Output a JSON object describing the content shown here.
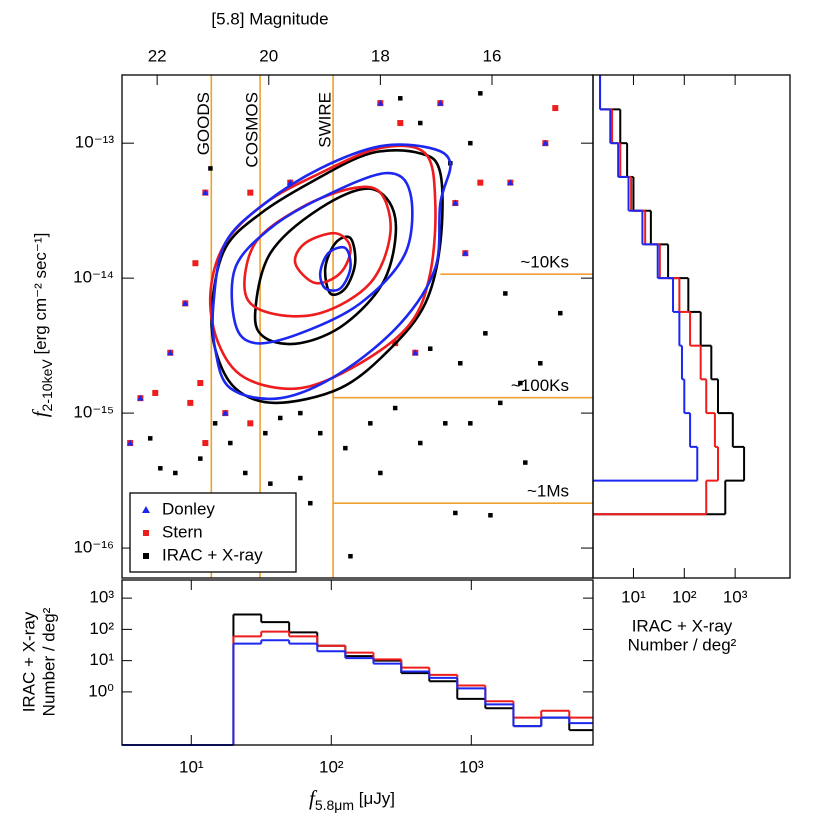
{
  "chart_data": [
    {
      "type": "scatter",
      "x2label": "[5.8] Magnitude",
      "ylabel": {
        "symbol": "f",
        "subscript": "2-10keV",
        "unit": " [erg cm⁻² sec⁻¹]"
      },
      "log_x": true,
      "log_y": true,
      "xlim": [
        3.2,
        7400
      ],
      "ylim": [
        6e-17,
        3.2e-13
      ],
      "yticks": [
        {
          "value": 1e-13,
          "label": "10⁻¹³"
        },
        {
          "value": 1e-14,
          "label": "10⁻¹⁴"
        },
        {
          "value": 1e-15,
          "label": "10⁻¹⁵"
        },
        {
          "value": 1e-16,
          "label": "10⁻¹⁶"
        }
      ],
      "x2lim": [
        22.63,
        14.19
      ],
      "x2ticks": [
        22,
        20,
        18,
        16
      ],
      "legend": "lower left",
      "reference_color": "#f0a030",
      "reference_lines": [
        {
          "label": "GOODS",
          "x": 13.9
        },
        {
          "label": "COSMOS",
          "x": 31
        },
        {
          "label": "SWIRE",
          "x": 103
        },
        {
          "label": "~10Ks",
          "y": 1.07e-14,
          "x_from": 601
        },
        {
          "label": "~100Ks",
          "y": 1.3e-15,
          "x_from": 103
        },
        {
          "label": "~1Ms",
          "y": 2.15e-16,
          "x_from": 103
        }
      ],
      "series": [
        {
          "name": "Donley",
          "color": "#1c28f0",
          "marker": "triangle",
          "x": [
            4.33,
            7.08,
            9.06,
            17.5,
            12.6,
            50.9,
            224,
            601,
            769,
            906,
            1900,
            3380,
            398,
            3.66
          ],
          "values": [
            1.29e-15,
            2.8e-15,
            6.5e-15,
            1e-15,
            4.3e-14,
            5.1e-14,
            1.98e-13,
            1.98e-13,
            3.6e-14,
            1.53e-14,
            5.1e-14,
            1e-13,
            2.8e-15,
            6e-16
          ]
        },
        {
          "name": "Stern",
          "color": "#ee1c1c",
          "marker": "square",
          "x": [
            3.66,
            4.33,
            5.53,
            7.08,
            9.06,
            9.84,
            11.6,
            12.6,
            17.5,
            26.4,
            10.7,
            12.6,
            26.4,
            50.9,
            224,
            311,
            601,
            769,
            906,
            1160,
            1900,
            3380,
            3980,
            398,
            286
          ],
          "values": [
            6e-16,
            1.29e-15,
            1.41e-15,
            2.8e-15,
            6.5e-15,
            1.19e-15,
            1.67e-15,
            6e-16,
            1e-15,
            8.4e-16,
            1.29e-14,
            4.3e-14,
            4.3e-14,
            5.1e-14,
            1.98e-13,
            1.41e-13,
            1.98e-13,
            3.6e-14,
            1.53e-14,
            5.1e-14,
            5.1e-14,
            1e-13,
            1.82e-13,
            2.8e-15,
            3.3e-15
          ]
        },
        {
          "name": "IRAC + X-ray",
          "color": "#000000",
          "marker": "square",
          "x": [
            5.09,
            6.01,
            7.69,
            11.6,
            14.8,
            19.0,
            24.3,
            33.8,
            43.2,
            60.1,
            83.4,
            126,
            190,
            286,
            432,
            652,
            984,
            1610,
            2240,
            3110,
            4320,
            1260,
            834,
            1750,
            509,
            137,
            70.8,
            36.7,
            769,
            1370,
            13.7,
            432,
            708,
            984,
            1160,
            311,
            2430,
            224,
            60.1,
            22.4
          ],
          "values": [
            6.5e-16,
            3.9e-16,
            3.6e-16,
            4.6e-16,
            8.4e-16,
            6e-16,
            3.6e-16,
            7.1e-16,
            9.2e-16,
            1e-15,
            7.1e-16,
            5.5e-16,
            8.4e-16,
            1.09e-15,
            6e-16,
            8.4e-16,
            8.4e-16,
            1.19e-15,
            1.67e-15,
            2.34e-15,
            5.5e-15,
            3.9e-15,
            2.34e-15,
            7.7e-15,
            3e-15,
            8.7e-17,
            2.15e-16,
            3e-16,
            1.82e-16,
            1.75e-16,
            6.5e-14,
            1.41e-13,
            7.1e-14,
            1e-13,
            2.34e-13,
            2.15e-13,
            4.3e-16,
            3.6e-16,
            3.3e-16,
            2.15e-16
          ]
        }
      ],
      "contours": [
        {
          "color": "#000000",
          "x": [
            14.1,
            17.5,
            31.1,
            70.8,
            190,
            432,
            601,
            601,
            469,
            264,
            116,
            39.8,
            20.6,
            14.8
          ],
          "y": [
            6.5e-15,
            1.67e-14,
            3e-14,
            5.1e-14,
            8.4e-14,
            8.4e-14,
            6e-14,
            1.82e-14,
            6.5e-15,
            3e-15,
            1.53e-15,
            1.19e-15,
            1.53e-15,
            3e-15
          ]
        },
        {
          "color": "#ee1c1c",
          "x": [
            13.7,
            17.5,
            33.8,
            83.4,
            224,
            469,
            553,
            509,
            366,
            161,
            60.1,
            24.3,
            15.6
          ],
          "y": [
            7.7e-15,
            1.82e-14,
            3.6e-14,
            6e-14,
            9.2e-14,
            8.4e-14,
            3.6e-14,
            1.09e-14,
            4.6e-15,
            2.34e-15,
            1.53e-15,
            1.82e-15,
            3.3e-15
          ]
        },
        {
          "color": "#1c28f0",
          "x": [
            14.4,
            17.5,
            33.8,
            83.4,
            224,
            509,
            708,
            601,
            553,
            311,
            116,
            43.2,
            19.0,
            14.8
          ],
          "y": [
            6.5e-15,
            1.82e-14,
            3.6e-14,
            6.5e-14,
            9.5e-14,
            9.2e-14,
            7.1e-14,
            3.6e-14,
            1.19e-14,
            4.6e-15,
            1.98e-15,
            1.29e-15,
            1.53e-15,
            3e-15
          ]
        },
        {
          "color": "#000000",
          "x": [
            28.6,
            36.7,
            83.4,
            190,
            286,
            243,
            126,
            60.1,
            33.8
          ],
          "y": [
            5.5e-15,
            1.53e-14,
            3.3e-14,
            4.6e-14,
            2.8e-14,
            1e-14,
            4.6e-15,
            3.3e-15,
            3.6e-15
          ]
        },
        {
          "color": "#ee1c1c",
          "x": [
            24.3,
            28.6,
            60.1,
            137,
            224,
            264,
            190,
            83.4,
            36.7
          ],
          "y": [
            7.7e-15,
            1.82e-14,
            3.3e-14,
            4.6e-14,
            4.3e-14,
            2.15e-14,
            9.2e-15,
            5.5e-15,
            5.5e-15
          ]
        },
        {
          "color": "#1c28f0",
          "x": [
            20.6,
            20.6,
            36.7,
            83.4,
            243,
            366,
            338,
            161,
            60.1,
            28.6
          ],
          "y": [
            4.6e-15,
            1.19e-14,
            2.34e-14,
            3.9e-14,
            6e-14,
            4.3e-14,
            1.53e-14,
            6.5e-15,
            3.9e-15,
            3.3e-15
          ]
        },
        {
          "color": "#000000",
          "x": [
            90.6,
            107,
            137,
            148,
            126,
            98.4
          ],
          "y": [
            1.19e-14,
            1.82e-14,
            1.98e-14,
            1.29e-14,
            8.4e-15,
            7.7e-15
          ]
        },
        {
          "color": "#ee1c1c",
          "x": [
            55.3,
            65.2,
            107,
            137,
            116,
            76.9
          ],
          "y": [
            1.29e-14,
            1.82e-14,
            2.15e-14,
            1.67e-14,
            1.09e-14,
            9.2e-15
          ]
        },
        {
          "color": "#1c28f0",
          "x": [
            83.4,
            95.2,
            126,
            137,
            116,
            90.6
          ],
          "y": [
            1.09e-14,
            1.53e-14,
            1.67e-14,
            1.19e-14,
            8.4e-15,
            8.4e-15
          ]
        }
      ]
    },
    {
      "type": "histogram",
      "orientation": "vertical",
      "xlabel": {
        "symbol": "f",
        "subscript": "5.8μm",
        "unit": " [μJy]"
      },
      "ylabel": [
        "IRAC + X-ray",
        "Number / deg²"
      ],
      "log_x": true,
      "log_y": true,
      "xlim": [
        3.2,
        7400
      ],
      "ylim": [
        0.02,
        3800
      ],
      "xticks": [
        {
          "value": 10,
          "label": "10¹"
        },
        {
          "value": 100,
          "label": "10²"
        },
        {
          "value": 1000,
          "label": "10³"
        }
      ],
      "yticks": [
        {
          "value": 1,
          "label": "10⁰"
        },
        {
          "value": 10,
          "label": "10¹"
        },
        {
          "value": 100,
          "label": "10²"
        },
        {
          "value": 1000,
          "label": "10³"
        }
      ],
      "bins": [
        20,
        31.6,
        50,
        79.4,
        126,
        200,
        316,
        501,
        794,
        1260,
        2000,
        3160,
        5010,
        7400
      ],
      "series": [
        {
          "color": "#000000",
          "values": [
            300,
            170,
            80,
            30,
            14,
            10,
            4,
            2.2,
            0.6,
            0.3,
            0.08,
            0.15,
            0.06
          ]
        },
        {
          "color": "#ee1c1c",
          "values": [
            60,
            85,
            60,
            30,
            18,
            11,
            6,
            3.5,
            1.6,
            0.5,
            0.15,
            0.25,
            0.15
          ]
        },
        {
          "color": "#1c28f0",
          "values": [
            35,
            45,
            35,
            20,
            12,
            8,
            4.5,
            2.8,
            1.3,
            0.4,
            0.08,
            0.15,
            0.1
          ]
        }
      ]
    },
    {
      "type": "histogram",
      "orientation": "horizontal",
      "xlabel": [
        "IRAC + X-ray",
        "Number / deg²"
      ],
      "log_x": true,
      "log_y": true,
      "xlim": [
        1.6,
        12000
      ],
      "ylim": [
        6e-17,
        3.2e-13
      ],
      "xticks": [
        {
          "value": 10,
          "label": "10¹"
        },
        {
          "value": 100,
          "label": "10²"
        },
        {
          "value": 1000,
          "label": "10³"
        }
      ],
      "series": [
        {
          "color": "#000000",
          "bins": [
            1.78e-16,
            3.16e-16,
            5.62e-16,
            1e-15,
            1.78e-15,
            3.16e-15,
            5.62e-15,
            1e-14,
            1.78e-14,
            3.16e-14,
            5.62e-14,
            1e-13,
            1.78e-13,
            3.2e-13
          ],
          "values": [
            640,
            1500,
            900,
            460,
            340,
            210,
            120,
            48,
            22,
            10,
            7.5,
            5.5,
            2.2
          ]
        },
        {
          "color": "#ee1c1c",
          "bins": [
            1.78e-16,
            3.16e-16,
            5.62e-16,
            1e-15,
            1.78e-15,
            3.16e-15,
            5.62e-15,
            1e-14,
            1.78e-14,
            3.16e-14,
            5.62e-14,
            1e-13,
            1.78e-13,
            3.2e-13
          ],
          "values": [
            270,
            460,
            400,
            270,
            210,
            130,
            80,
            33,
            17,
            9,
            5.5,
            3.8,
            2.2
          ]
        },
        {
          "color": "#1c28f0",
          "bins": [
            3.16e-16,
            5.62e-16,
            1e-15,
            1.78e-15,
            3.16e-15,
            5.62e-15,
            1e-14,
            1.78e-14,
            3.16e-14,
            5.62e-14,
            1e-13,
            1.78e-13,
            3.2e-13
          ],
          "values": [
            180,
            130,
            100,
            90,
            80,
            60,
            30,
            15,
            8,
            5,
            3.5,
            2.2
          ]
        }
      ]
    }
  ]
}
